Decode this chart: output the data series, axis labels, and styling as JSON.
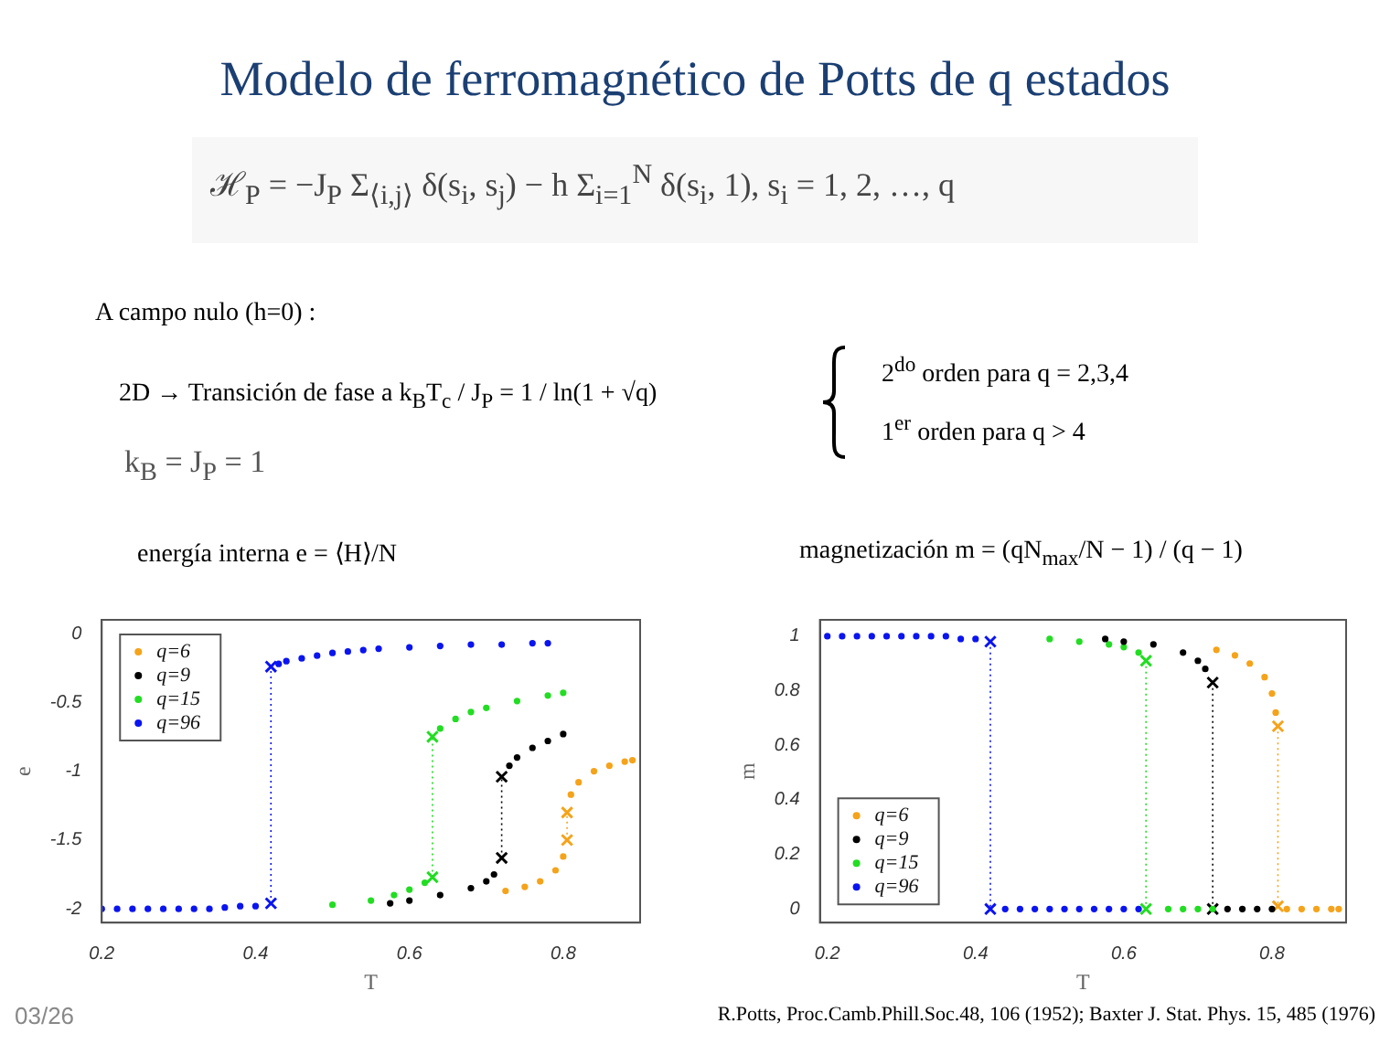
{
  "chart_data": [
    {
      "type": "scatter",
      "title": "Modelo de ferromagnético de Potts de q estados",
      "subtitle": "energía interna   e = ⟨H⟩/N",
      "xlabel": "T",
      "ylabel": "e",
      "annotations": [
        "ℋ$_{P}$ = −J$_{P}$ Σ$_{⟨i,j⟩}$ δ(s$_{i}$, s$_{j}$) − h Σ$_{i=1}$$^{N}$ δ(s$_{i}$, 1),      s$_{i}$ = 1, 2, …, q",
        "A campo nulo (h=0) :",
        "2D → Transición de fase a   k$_{B}$T$_{c}$ / J$_{P}$ = 1 / ln(1 + √q)",
        "2$^{do}$ orden para q = 2,3,4",
        "1$^{er}$ orden para q > 4",
        "k$_{B}$ = J$_{P}$ = 1",
        "03/26"
      ],
      "xlim": [
        0.2,
        0.9
      ],
      "ylim": [
        -2.1,
        0.1
      ],
      "xticks": [
        0.2,
        0.4,
        0.6,
        0.8
      ],
      "yticks": [
        0,
        -0.5,
        -1,
        -1.5,
        -2
      ],
      "grid": false,
      "legend": "top left",
      "marker": "circle",
      "series": [
        {
          "name": "q=6",
          "color": "#f5a31a",
          "x": [
            0.725,
            0.75,
            0.77,
            0.79,
            0.8,
            0.81,
            0.82,
            0.84,
            0.86,
            0.88,
            0.89
          ],
          "values": [
            -1.87,
            -1.84,
            -1.8,
            -1.72,
            -1.62,
            -1.17,
            -1.08,
            -1.0,
            -0.96,
            -0.93,
            -0.92
          ]
        },
        {
          "name": "q=9",
          "color": "#000000",
          "x": [
            0.575,
            0.6,
            0.64,
            0.68,
            0.7,
            0.71,
            0.73,
            0.74,
            0.76,
            0.78,
            0.8
          ],
          "values": [
            -1.96,
            -1.94,
            -1.9,
            -1.85,
            -1.8,
            -1.75,
            -0.96,
            -0.9,
            -0.83,
            -0.78,
            -0.73
          ]
        },
        {
          "name": "q=15",
          "color": "#22dd22",
          "x": [
            0.5,
            0.55,
            0.58,
            0.6,
            0.62,
            0.64,
            0.66,
            0.68,
            0.7,
            0.74,
            0.78,
            0.8
          ],
          "values": [
            -1.97,
            -1.94,
            -1.9,
            -1.86,
            -1.81,
            -0.69,
            -0.62,
            -0.57,
            -0.54,
            -0.49,
            -0.45,
            -0.43
          ]
        },
        {
          "name": "q=96",
          "color": "#0a14f0",
          "x": [
            0.2,
            0.22,
            0.24,
            0.26,
            0.28,
            0.3,
            0.32,
            0.34,
            0.36,
            0.38,
            0.4,
            0.43,
            0.44,
            0.46,
            0.48,
            0.5,
            0.52,
            0.54,
            0.56,
            0.6,
            0.64,
            0.68,
            0.72,
            0.76,
            0.78
          ],
          "values": [
            -2,
            -2,
            -2,
            -2,
            -2,
            -2,
            -2,
            -2,
            -1.99,
            -1.98,
            -1.98,
            -0.22,
            -0.2,
            -0.18,
            -0.16,
            -0.14,
            -0.13,
            -0.12,
            -0.11,
            -0.1,
            -0.09,
            -0.08,
            -0.08,
            -0.07,
            -0.07
          ]
        },
        {
          "type": "line",
          "color": "#f5a31a",
          "line_style": "dotted",
          "marker": "cross",
          "x": [
            0.805,
            0.805
          ],
          "values": [
            -1.5,
            -1.3
          ]
        },
        {
          "type": "line",
          "color": "#000000",
          "line_style": "dotted",
          "marker": "cross",
          "x": [
            0.72,
            0.72
          ],
          "values": [
            -1.63,
            -1.04
          ]
        },
        {
          "type": "line",
          "color": "#22dd22",
          "line_style": "dotted",
          "marker": "cross",
          "x": [
            0.63,
            0.63
          ],
          "values": [
            -1.77,
            -0.75
          ]
        },
        {
          "type": "line",
          "color": "#0a14f0",
          "line_style": "dotted",
          "marker": "cross",
          "x": [
            0.42,
            0.42
          ],
          "values": [
            -1.96,
            -0.24
          ]
        }
      ]
    },
    {
      "type": "scatter",
      "subtitle": "magnetización   m = (qN$_{max}$/N − 1) / (q − 1)",
      "xlabel": "T",
      "ylabel": "m",
      "annotations": [
        "R.Potts, Proc.Camb.Phill.Soc.48, 106 (1952); Baxter J. Stat. Phys. 15, 485 (1976)"
      ],
      "xlim": [
        0.19,
        0.9
      ],
      "ylim": [
        -0.05,
        1.06
      ],
      "xticks": [
        0.2,
        0.4,
        0.6,
        0.8
      ],
      "yticks": [
        0,
        0.2,
        0.4,
        0.6,
        0.8,
        1
      ],
      "grid": false,
      "legend": "bottom left",
      "marker": "circle",
      "series": [
        {
          "name": "q=6",
          "color": "#f5a31a",
          "x": [
            0.725,
            0.75,
            0.77,
            0.79,
            0.8,
            0.805,
            0.82,
            0.84,
            0.86,
            0.88,
            0.89
          ],
          "values": [
            0.95,
            0.93,
            0.9,
            0.85,
            0.79,
            0.72,
            0,
            0,
            0,
            0,
            0
          ]
        },
        {
          "name": "q=9",
          "color": "#000000",
          "x": [
            0.575,
            0.6,
            0.64,
            0.68,
            0.7,
            0.71,
            0.74,
            0.76,
            0.78,
            0.8
          ],
          "values": [
            0.99,
            0.98,
            0.97,
            0.94,
            0.91,
            0.88,
            0,
            0,
            0,
            0
          ]
        },
        {
          "name": "q=15",
          "color": "#22dd22",
          "x": [
            0.5,
            0.54,
            0.58,
            0.6,
            0.62,
            0.66,
            0.68,
            0.7,
            0.72
          ],
          "values": [
            0.99,
            0.98,
            0.97,
            0.96,
            0.94,
            0,
            0,
            0,
            0
          ]
        },
        {
          "name": "q=96",
          "color": "#0a14f0",
          "x": [
            0.2,
            0.22,
            0.24,
            0.26,
            0.28,
            0.3,
            0.32,
            0.34,
            0.36,
            0.38,
            0.4,
            0.44,
            0.46,
            0.48,
            0.5,
            0.52,
            0.54,
            0.56,
            0.58,
            0.6,
            0.62
          ],
          "values": [
            1,
            1,
            1,
            1,
            1,
            1,
            1,
            1,
            1,
            0.99,
            0.99,
            0,
            0,
            0,
            0,
            0,
            0,
            0,
            0,
            0,
            0
          ]
        },
        {
          "type": "line",
          "color": "#f5a31a",
          "line_style": "dotted",
          "marker": "cross",
          "x": [
            0.808,
            0.808
          ],
          "values": [
            0.67,
            0.01
          ]
        },
        {
          "type": "line",
          "color": "#000000",
          "line_style": "dotted",
          "marker": "cross",
          "x": [
            0.72,
            0.72
          ],
          "values": [
            0.83,
            0
          ]
        },
        {
          "type": "line",
          "color": "#22dd22",
          "line_style": "dotted",
          "marker": "cross",
          "x": [
            0.63,
            0.63
          ],
          "values": [
            0.91,
            0
          ]
        },
        {
          "type": "line",
          "color": "#0a14f0",
          "line_style": "dotted",
          "marker": "cross",
          "x": [
            0.42,
            0.42
          ],
          "values": [
            0.98,
            0
          ]
        }
      ]
    }
  ]
}
